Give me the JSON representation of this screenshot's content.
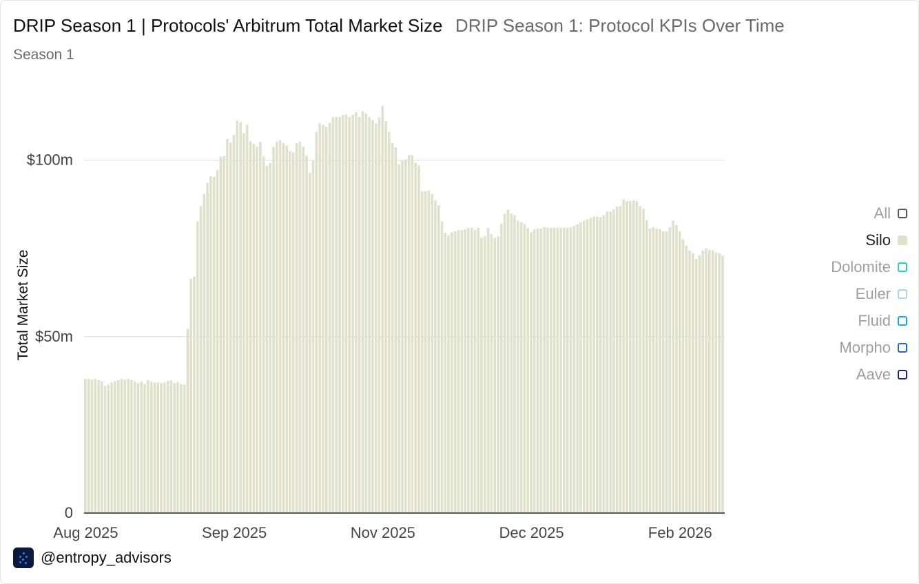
{
  "header": {
    "title": "DRIP Season 1 | Protocols' Arbitrum Total Market Size",
    "subtitle": "DRIP Season 1: Protocol KPIs Over Time",
    "season": "Season 1"
  },
  "legend": {
    "items": [
      {
        "label": "All",
        "color": "#555555",
        "filled": false,
        "active": false
      },
      {
        "label": "Silo",
        "color": "#e0e0cc",
        "filled": true,
        "active": true
      },
      {
        "label": "Dolomite",
        "color": "#1fd1c8",
        "filled": false,
        "active": false
      },
      {
        "label": "Euler",
        "color": "#a9d4f0",
        "filled": false,
        "active": false
      },
      {
        "label": "Fluid",
        "color": "#17a6f0",
        "filled": false,
        "active": false
      },
      {
        "label": "Morpho",
        "color": "#1f64e0",
        "filled": false,
        "active": false
      },
      {
        "label": "Aave",
        "color": "#0f2a6e",
        "filled": false,
        "active": false
      }
    ]
  },
  "footer": {
    "handle": "@entropy_advisors"
  },
  "chart_data": {
    "type": "bar",
    "series": [
      {
        "name": "Silo",
        "color": "#e0e0cc"
      }
    ],
    "ylabel": "Total Market Size",
    "xlabel": "",
    "ylim": [
      0,
      120
    ],
    "yticks": [
      {
        "value": 0,
        "label": "0"
      },
      {
        "value": 50,
        "label": "$50m"
      },
      {
        "value": 100,
        "label": "$100m"
      }
    ],
    "xticks": [
      {
        "index": 0,
        "label": "Aug 2025"
      },
      {
        "index": 45,
        "label": "Sep 2025"
      },
      {
        "index": 90,
        "label": "Nov 2025"
      },
      {
        "index": 135,
        "label": "Dec 2025"
      },
      {
        "index": 180,
        "label": "Feb 2026"
      }
    ],
    "bar_color": "#e0e0cc",
    "values": [
      38.0,
      38.0,
      37.8,
      38.0,
      37.6,
      37.4,
      36.0,
      36.4,
      37.0,
      37.4,
      37.6,
      38.0,
      37.8,
      38.0,
      37.6,
      37.2,
      36.8,
      37.2,
      36.6,
      37.6,
      37.2,
      37.0,
      37.0,
      36.8,
      37.0,
      37.4,
      37.6,
      36.8,
      37.2,
      36.6,
      36.4,
      52.2,
      66.4,
      67.0,
      82.6,
      87.0,
      90.4,
      93.6,
      95.4,
      95.2,
      97.2,
      101.0,
      101.2,
      106.0,
      105.0,
      107.2,
      111.2,
      110.8,
      107.6,
      110.0,
      105.4,
      104.6,
      103.8,
      105.2,
      101.0,
      98.4,
      99.2,
      103.8,
      105.2,
      105.6,
      104.8,
      104.2,
      102.6,
      102.2,
      104.8,
      105.2,
      103.8,
      101.2,
      96.4,
      99.8,
      108.0,
      110.4,
      110.0,
      109.4,
      110.6,
      112.2,
      112.2,
      112.2,
      112.8,
      113.0,
      112.2,
      112.8,
      113.6,
      112.2,
      113.8,
      113.2,
      112.2,
      111.4,
      110.4,
      112.0,
      115.4,
      111.0,
      108.0,
      104.8,
      103.6,
      98.8,
      99.8,
      100.2,
      101.4,
      101.4,
      99.2,
      98.4,
      91.2,
      91.2,
      91.4,
      90.4,
      88.6,
      87.2,
      82.6,
      79.4,
      78.8,
      79.6,
      79.8,
      80.2,
      80.2,
      80.4,
      80.8,
      80.8,
      80.2,
      80.8,
      78.0,
      78.4,
      80.8,
      79.0,
      78.0,
      78.4,
      82.0,
      84.8,
      86.0,
      84.8,
      84.4,
      82.8,
      82.4,
      82.0,
      80.8,
      79.6,
      80.4,
      80.6,
      80.6,
      81.0,
      80.8,
      80.8,
      80.8,
      80.8,
      80.8,
      80.8,
      80.8,
      81.0,
      81.4,
      81.8,
      82.4,
      82.8,
      83.2,
      83.6,
      84.0,
      84.0,
      83.8,
      84.4,
      85.4,
      85.4,
      86.0,
      86.8,
      87.0,
      88.8,
      88.4,
      88.4,
      88.6,
      88.4,
      87.0,
      86.2,
      83.0,
      80.6,
      81.0,
      80.6,
      80.4,
      79.8,
      79.8,
      81.0,
      82.8,
      81.6,
      79.8,
      77.6,
      75.8,
      74.4,
      73.6,
      72.0,
      73.0,
      74.4,
      75.0,
      74.6,
      74.4,
      73.8,
      73.6,
      73.0
    ]
  }
}
